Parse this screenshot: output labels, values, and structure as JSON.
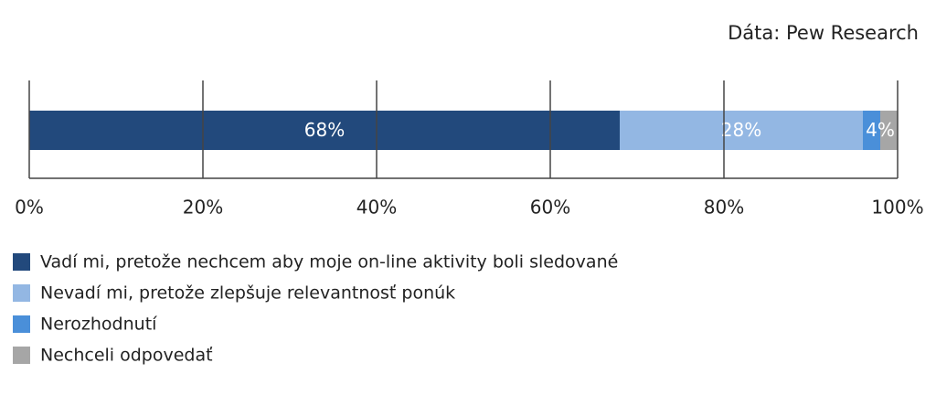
{
  "chart_data": {
    "type": "stacked_bar",
    "source": "Dáta: Pew Research",
    "xlim": [
      0,
      100
    ],
    "xticks": [
      {
        "value": 0,
        "label": "0%"
      },
      {
        "value": 20,
        "label": "20%"
      },
      {
        "value": 40,
        "label": "40%"
      },
      {
        "value": 60,
        "label": "60%"
      },
      {
        "value": 80,
        "label": "80%"
      },
      {
        "value": 100,
        "label": "100%"
      }
    ],
    "series": [
      {
        "name": "Vadí mi, pretože nechcem aby moje on-line aktivity boli sledované",
        "color": "#22497c",
        "values": [
          68
        ],
        "value_labels": [
          "68%"
        ]
      },
      {
        "name": "Nevadí mi, pretože zlepšuje relevantnosť ponúk",
        "color": "#93b7e3",
        "values": [
          28
        ],
        "value_labels": [
          "28%"
        ]
      },
      {
        "name": "Nerozhodnutí",
        "color": "#4a8fd9",
        "values": [
          2
        ]
      },
      {
        "name": "Nechceli odpovedať",
        "color": "#a6a6a6",
        "values": [
          2
        ]
      }
    ],
    "annotations": [
      {
        "text": "4%"
      }
    ]
  }
}
